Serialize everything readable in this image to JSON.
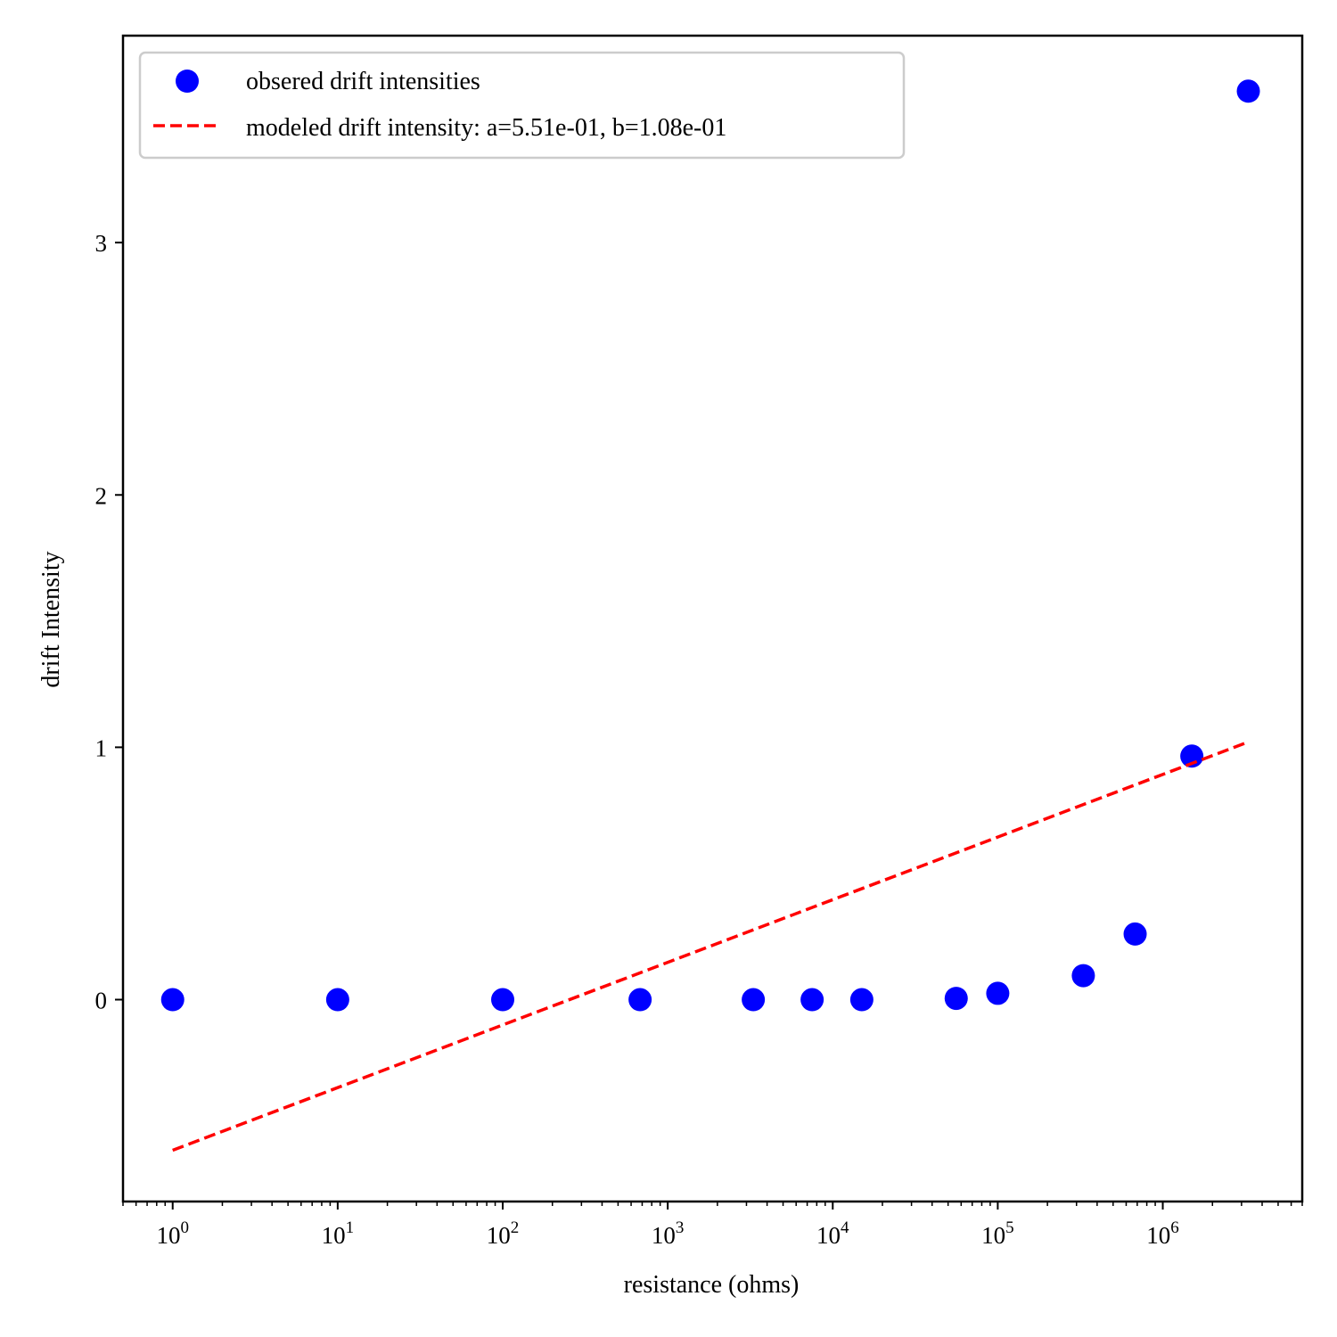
{
  "chart_data": {
    "type": "scatter",
    "title": "",
    "xlabel": "resistance (ohms)",
    "ylabel": "drift Intensity",
    "x_scale": "log",
    "xlim": [
      0.5,
      7000000
    ],
    "ylim": [
      -0.8,
      3.82
    ],
    "x_ticks": [
      {
        "value": 1,
        "base": "10",
        "exp": "0"
      },
      {
        "value": 10,
        "base": "10",
        "exp": "1"
      },
      {
        "value": 100,
        "base": "10",
        "exp": "2"
      },
      {
        "value": 1000,
        "base": "10",
        "exp": "3"
      },
      {
        "value": 10000,
        "base": "10",
        "exp": "4"
      },
      {
        "value": 100000,
        "base": "10",
        "exp": "5"
      },
      {
        "value": 1000000,
        "base": "10",
        "exp": "6"
      }
    ],
    "y_ticks": [
      {
        "value": 0,
        "label": "0"
      },
      {
        "value": 1,
        "label": "1"
      },
      {
        "value": 2,
        "label": "2"
      },
      {
        "value": 3,
        "label": "3"
      }
    ],
    "grid": false,
    "legend_position": "top-left",
    "series": [
      {
        "name": "obsered drift intensities",
        "kind": "scatter",
        "color": "#0000ff",
        "points": [
          {
            "x": 1,
            "y": 0.0
          },
          {
            "x": 10,
            "y": 0.0
          },
          {
            "x": 100,
            "y": 0.0
          },
          {
            "x": 680,
            "y": 0.0
          },
          {
            "x": 3300,
            "y": 0.0
          },
          {
            "x": 7500,
            "y": 0.0
          },
          {
            "x": 15000,
            "y": 0.0
          },
          {
            "x": 56000,
            "y": 0.005
          },
          {
            "x": 100000,
            "y": 0.025
          },
          {
            "x": 330000,
            "y": 0.095
          },
          {
            "x": 680000,
            "y": 0.26
          },
          {
            "x": 1500000,
            "y": 0.965
          },
          {
            "x": 3300000,
            "y": 3.6
          }
        ]
      },
      {
        "name": "modeled drift intensity: a=5.51e-01, b=1.08e-01",
        "kind": "line",
        "style": "dashed",
        "color": "#ff0000",
        "points": [
          {
            "x": 1,
            "y": -0.597
          },
          {
            "x": 3300000,
            "y": 1.021
          }
        ]
      }
    ]
  }
}
